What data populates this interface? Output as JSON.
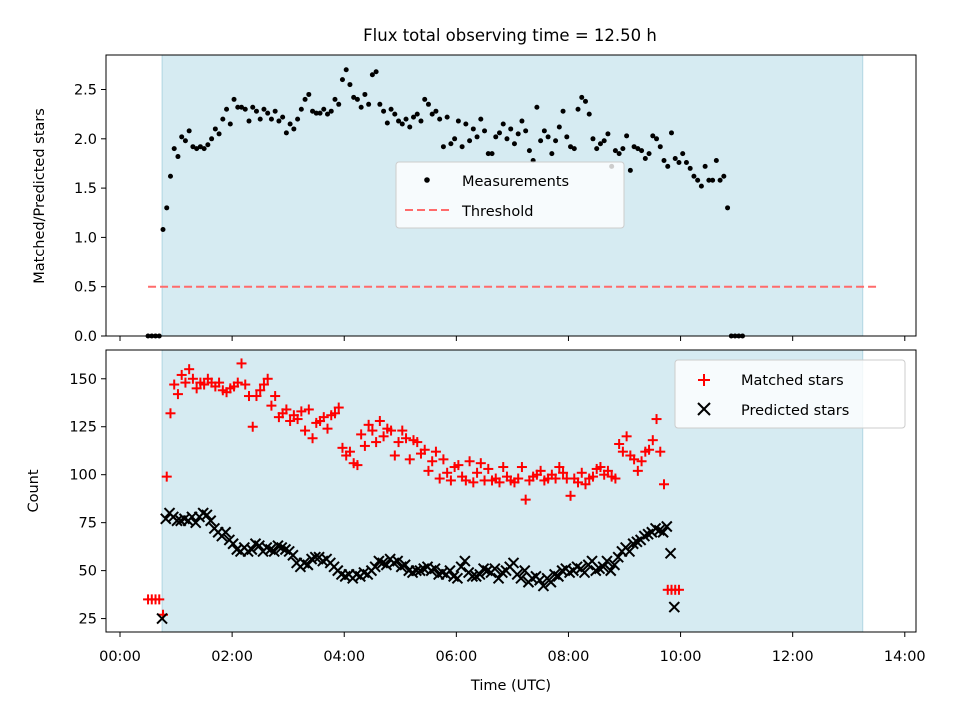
{
  "figure_title": "Flux total observing time = 12.50 h",
  "colors": {
    "observing_band": "#add8e6",
    "measurement": "#000000",
    "threshold": "#ff6b6b",
    "matched": "#ff0000",
    "predicted": "#000000"
  },
  "chart_data": [
    {
      "type": "scatter",
      "title": "Flux total observing time = 12.50 h",
      "xlabel": "",
      "ylabel": "Matched/Predicted stars",
      "xlim": [
        -0.25,
        14.2
      ],
      "ylim": [
        0,
        2.85
      ],
      "yticks": [
        0.0,
        0.5,
        1.0,
        1.5,
        2.0,
        2.5
      ],
      "ytick_labels": [
        "0.0",
        "0.5",
        "1.0",
        "1.5",
        "2.0",
        "2.5"
      ],
      "legend_position": "center",
      "observing_window_hours": [
        0.75,
        13.25
      ],
      "threshold": {
        "name": "Threshold",
        "value": 0.5,
        "x_range": [
          0.5,
          13.5
        ]
      },
      "legend": [
        "Measurements",
        "Threshold"
      ],
      "series": [
        {
          "name": "Measurements",
          "marker": "dot",
          "step_hours": 0.0667,
          "start_hours": 0.5,
          "values": [
            0.0,
            0.0,
            0.0,
            0.0,
            1.08,
            1.3,
            1.62,
            1.9,
            1.82,
            2.02,
            1.98,
            2.08,
            1.92,
            1.9,
            1.92,
            1.9,
            1.94,
            2.0,
            2.1,
            2.05,
            2.2,
            2.3,
            2.15,
            2.4,
            2.32,
            2.32,
            2.3,
            2.18,
            2.32,
            2.28,
            2.2,
            2.3,
            2.26,
            2.2,
            2.28,
            2.18,
            2.22,
            2.06,
            2.15,
            2.1,
            2.2,
            2.3,
            2.4,
            2.45,
            2.28,
            2.26,
            2.26,
            2.3,
            2.25,
            2.28,
            2.4,
            2.35,
            2.6,
            2.7,
            2.55,
            2.42,
            2.4,
            2.32,
            2.45,
            2.35,
            2.65,
            2.68,
            2.35,
            2.28,
            2.16,
            2.3,
            2.25,
            2.18,
            2.15,
            2.2,
            2.12,
            2.22,
            2.25,
            2.18,
            2.4,
            2.35,
            2.25,
            2.28,
            2.2,
            1.92,
            2.22,
            1.95,
            2.0,
            2.18,
            1.92,
            2.15,
            1.98,
            2.1,
            2.02,
            2.2,
            2.08,
            1.85,
            1.85,
            2.02,
            2.06,
            2.15,
            2.0,
            2.1,
            1.95,
            2.05,
            2.18,
            2.08,
            1.88,
            1.78,
            2.32,
            1.98,
            2.08,
            2.02,
            1.85,
            1.98,
            2.12,
            2.28,
            2.02,
            1.92,
            1.9,
            2.3,
            2.42,
            2.38,
            2.25,
            2.0,
            1.9,
            1.95,
            1.98,
            2.05,
            1.72,
            1.88,
            1.85,
            1.9,
            2.03,
            1.68,
            1.92,
            1.9,
            1.88,
            1.8,
            1.85,
            2.03,
            2.0,
            1.92,
            1.78,
            1.72,
            2.06,
            1.8,
            1.76,
            1.85,
            1.76,
            1.7,
            1.62,
            1.58,
            1.52,
            1.72,
            1.58,
            1.58,
            1.78,
            1.58,
            1.62,
            1.3,
            0.0,
            0.0,
            0.0,
            0.0
          ]
        }
      ]
    },
    {
      "type": "scatter",
      "title": "",
      "xlabel": "Time (UTC)",
      "ylabel": "Count",
      "xlim": [
        -0.25,
        14.2
      ],
      "ylim": [
        18,
        165
      ],
      "yticks": [
        25,
        50,
        75,
        100,
        125,
        150
      ],
      "ytick_labels": [
        "25",
        "50",
        "75",
        "100",
        "125",
        "150"
      ],
      "xticks": [
        0,
        2,
        4,
        6,
        8,
        10,
        12,
        14
      ],
      "xtick_labels": [
        "00:00",
        "02:00",
        "04:00",
        "06:00",
        "08:00",
        "10:00",
        "12:00",
        "14:00"
      ],
      "legend_position": "top-right",
      "observing_window_hours": [
        0.75,
        13.25
      ],
      "legend": [
        "Matched stars",
        "Predicted stars"
      ],
      "series": [
        {
          "name": "Matched stars",
          "marker": "plus",
          "step_hours": 0.0667,
          "start_hours": 0.5,
          "values": [
            35,
            35,
            35,
            35,
            27,
            99,
            132,
            147,
            142,
            152,
            148,
            155,
            150,
            145,
            148,
            147,
            150,
            148,
            146,
            148,
            144,
            143,
            145,
            146,
            148,
            158,
            147,
            141,
            125,
            141,
            144,
            147,
            150,
            136,
            141,
            130,
            132,
            134,
            128,
            131,
            129,
            133,
            123,
            134,
            119,
            127,
            128,
            130,
            124,
            131,
            132,
            135,
            114,
            110,
            112,
            106,
            105,
            121,
            115,
            126,
            123,
            117,
            128,
            120,
            124,
            123,
            110,
            117,
            123,
            119,
            108,
            118,
            117,
            111,
            113,
            102,
            107,
            112,
            98,
            108,
            101,
            97,
            104,
            105,
            99,
            97,
            107,
            96,
            101,
            106,
            97,
            103,
            97,
            98,
            96,
            104,
            99,
            97,
            96,
            98,
            104,
            87,
            97,
            99,
            100,
            102,
            97,
            98,
            100,
            98,
            104,
            101,
            98,
            89,
            98,
            96,
            101,
            95,
            98,
            99,
            103,
            104,
            100,
            102,
            99,
            98,
            116,
            112,
            120,
            110,
            108,
            102,
            107,
            112,
            113,
            118,
            129,
            112,
            95,
            40,
            40,
            40,
            40
          ]
        },
        {
          "name": "Predicted stars",
          "marker": "x",
          "step_hours": 0.0667,
          "start_hours": 0.75,
          "values": [
            25,
            77,
            80,
            78,
            76,
            76,
            77,
            76,
            78,
            75,
            78,
            80,
            79,
            76,
            72,
            70,
            68,
            70,
            66,
            64,
            61,
            60,
            62,
            60,
            61,
            64,
            63,
            60,
            62,
            61,
            60,
            63,
            62,
            61,
            60,
            58,
            54,
            52,
            54,
            53,
            56,
            57,
            57,
            55,
            56,
            54,
            52,
            50,
            48,
            47,
            48,
            46,
            48,
            47,
            49,
            48,
            50,
            52,
            55,
            54,
            53,
            56,
            54,
            55,
            52,
            53,
            50,
            49,
            50,
            50,
            51,
            52,
            50,
            51,
            48,
            49,
            48,
            50,
            47,
            46,
            52,
            55,
            49,
            47,
            47,
            48,
            51,
            50,
            49,
            51,
            46,
            49,
            50,
            52,
            54,
            48,
            46,
            50,
            44,
            46,
            47,
            45,
            42,
            46,
            44,
            48,
            47,
            50,
            51,
            49,
            50,
            52,
            51,
            49,
            53,
            55,
            50,
            51,
            52,
            55,
            50,
            53,
            57,
            60,
            62,
            60,
            64,
            65,
            66,
            68,
            69,
            70,
            72,
            71,
            70,
            73,
            59,
            31
          ]
        }
      ]
    }
  ]
}
